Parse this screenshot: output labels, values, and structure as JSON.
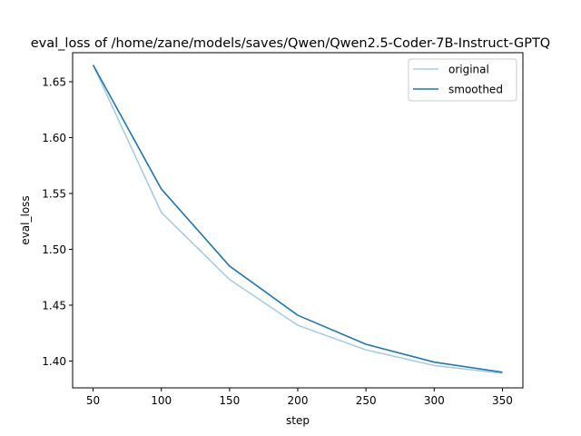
{
  "chart_data": {
    "type": "line",
    "title": "eval_loss of /home/zane/models/saves/Qwen/Qwen2.5-Coder-7B-Instruct-GPTQ",
    "xlabel": "step",
    "ylabel": "eval_loss",
    "xlim": [
      35,
      365
    ],
    "ylim": [
      1.376,
      1.676
    ],
    "xticks": [
      50,
      100,
      150,
      200,
      250,
      300,
      350
    ],
    "yticks": [
      1.4,
      1.45,
      1.5,
      1.55,
      1.6,
      1.65
    ],
    "ytick_labels": [
      "1.40",
      "1.45",
      "1.50",
      "1.55",
      "1.60",
      "1.65"
    ],
    "legend_position": "top-right",
    "grid": false,
    "series": [
      {
        "name": "original",
        "color": "#a6cde3",
        "x": [
          50,
          100,
          150,
          200,
          250,
          300,
          350
        ],
        "y": [
          1.665,
          1.533,
          1.473,
          1.432,
          1.41,
          1.396,
          1.389
        ]
      },
      {
        "name": "smoothed",
        "color": "#1f77b4",
        "x": [
          50,
          100,
          150,
          200,
          250,
          300,
          350
        ],
        "y": [
          1.665,
          1.554,
          1.485,
          1.441,
          1.415,
          1.399,
          1.39
        ]
      }
    ]
  }
}
